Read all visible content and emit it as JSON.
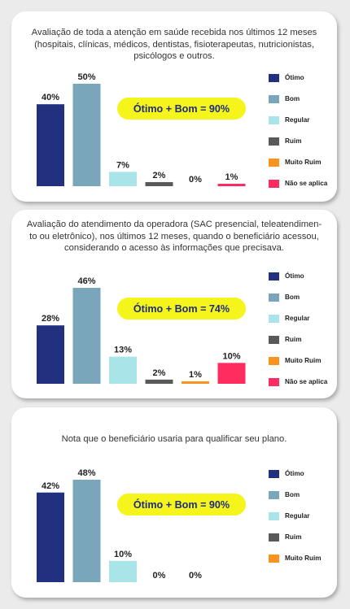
{
  "colors": {
    "otimo": "#21317f",
    "bom": "#79a6bb",
    "regular": "#a9e4e9",
    "ruim": "#595959",
    "muito_ruim": "#f7931e",
    "nao_se_aplica": "#ff2d5f",
    "badge_bg": "#f5f51c",
    "badge_text": "#1e2c82"
  },
  "chart_data": [
    {
      "type": "bar",
      "title": "Avaliação de toda a atenção em saúde recebida nos últimos 12 meses (hospitais, clínicas, médicos, dentistas, fisioterapeutas, nutricionistas, psicólogos e outros.",
      "categories": [
        "Ótimo",
        "Bom",
        "Regular",
        "Ruim",
        "Muito Ruim",
        "Não se aplica"
      ],
      "values": [
        40,
        50,
        7,
        2,
        0,
        1
      ],
      "value_labels": [
        "40%",
        "50%",
        "7%",
        "2%",
        "0%",
        "1%"
      ],
      "ylim": [
        0,
        50
      ],
      "badge": "Ótimo + Bom = 90%",
      "legend": [
        "Ótimo",
        "Bom",
        "Regular",
        "Ruim",
        "Muito Ruim",
        "Não se aplica"
      ],
      "legend_position": "right",
      "grid": false
    },
    {
      "type": "bar",
      "title": "Avaliação do atendimento da operadora (SAC presencial, teleatendimento ou eletrônico), nos últimos 12 meses, quando o beneficiário acessou, considerando o acesso às informações que precisava.",
      "title_lines": [
        "Avaliação do atendimento da operadora (SAC presencial, teleatendimen-",
        "to ou eletrônico), nos últimos 12 meses, quando o beneficiário acessou,",
        "considerando o acesso às informações que precisava."
      ],
      "categories": [
        "Ótimo",
        "Bom",
        "Regular",
        "Ruim",
        "Muito Ruim",
        "Não se aplica"
      ],
      "values": [
        28,
        46,
        13,
        2,
        1,
        10
      ],
      "value_labels": [
        "28%",
        "46%",
        "13%",
        "2%",
        "1%",
        "10%"
      ],
      "ylim": [
        0,
        46
      ],
      "badge": "Ótimo + Bom = 74%",
      "legend": [
        "Ótimo",
        "Bom",
        "Regular",
        "Ruim",
        "Muito Ruim",
        "Não se aplica"
      ],
      "legend_position": "right",
      "grid": false
    },
    {
      "type": "bar",
      "title": "Nota que o beneficiário usaria para qualificar seu plano.",
      "categories": [
        "Ótimo",
        "Bom",
        "Regular",
        "Ruim",
        "Muito Ruim"
      ],
      "values": [
        42,
        48,
        10,
        0,
        0
      ],
      "value_labels": [
        "42%",
        "48%",
        "10%",
        "0%",
        "0%"
      ],
      "ylim": [
        0,
        48
      ],
      "badge": "Ótimo + Bom = 90%",
      "legend": [
        "Ótimo",
        "Bom",
        "Regular",
        "Ruim",
        "Muito Ruim"
      ],
      "legend_position": "right",
      "grid": false
    }
  ]
}
